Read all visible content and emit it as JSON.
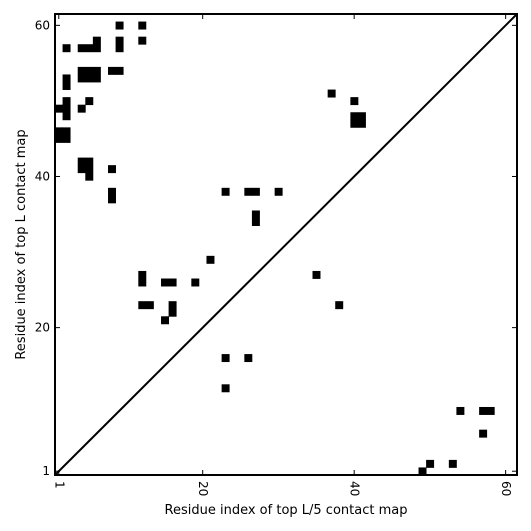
{
  "chart_data": {
    "type": "heatmap",
    "title": "",
    "xlabel": "Residue index of top L/5 contact map",
    "ylabel": "Residue index of top L contact map",
    "xlim": [
      0.5,
      61.5
    ],
    "ylim": [
      0.5,
      61.5
    ],
    "x_ticks": [
      1,
      20,
      40,
      60
    ],
    "y_ticks": [
      1,
      20,
      40,
      60
    ],
    "x_tick_rotation": "vertical",
    "grid": false,
    "legend": "none",
    "diagonal": true,
    "colors": {
      "contact": "#000000",
      "background": "#ffffff",
      "axis": "#000000"
    },
    "upper_triangle_contacts": [
      [
        9,
        60
      ],
      [
        12,
        60
      ],
      [
        2,
        57
      ],
      [
        4,
        57
      ],
      [
        5,
        57
      ],
      [
        6,
        57
      ],
      [
        6,
        58
      ],
      [
        9,
        57
      ],
      [
        9,
        58
      ],
      [
        12,
        58
      ],
      [
        4,
        53
      ],
      [
        4,
        54
      ],
      [
        5,
        53
      ],
      [
        5,
        54
      ],
      [
        6,
        53
      ],
      [
        6,
        54
      ],
      [
        2,
        52
      ],
      [
        2,
        53
      ],
      [
        8,
        54
      ],
      [
        9,
        54
      ],
      [
        37,
        51
      ],
      [
        40,
        50
      ],
      [
        5,
        50
      ],
      [
        2,
        49
      ],
      [
        2,
        50
      ],
      [
        1,
        49
      ],
      [
        4,
        49
      ],
      [
        2,
        48
      ],
      [
        40,
        47
      ],
      [
        40,
        48
      ],
      [
        41,
        47
      ],
      [
        41,
        48
      ],
      [
        1,
        45
      ],
      [
        1,
        46
      ],
      [
        2,
        45
      ],
      [
        2,
        46
      ],
      [
        4,
        41
      ],
      [
        4,
        42
      ],
      [
        5,
        41
      ],
      [
        5,
        42
      ],
      [
        5,
        40
      ],
      [
        8,
        41
      ],
      [
        8,
        37
      ],
      [
        8,
        38
      ],
      [
        23,
        38
      ],
      [
        26,
        38
      ],
      [
        27,
        38
      ],
      [
        30,
        38
      ],
      [
        27,
        34
      ],
      [
        27,
        35
      ],
      [
        21,
        29
      ],
      [
        12,
        26
      ],
      [
        12,
        27
      ],
      [
        35,
        27
      ],
      [
        15,
        26
      ],
      [
        16,
        26
      ],
      [
        19,
        26
      ],
      [
        12,
        23
      ],
      [
        13,
        23
      ],
      [
        16,
        22
      ],
      [
        16,
        23
      ],
      [
        38,
        23
      ],
      [
        15,
        21
      ],
      [
        23,
        16
      ],
      [
        26,
        16
      ],
      [
        23,
        12
      ]
    ],
    "lower_triangle_contacts": [
      [
        54,
        9
      ],
      [
        57,
        9
      ],
      [
        58,
        9
      ],
      [
        57,
        6
      ],
      [
        49,
        1
      ],
      [
        50,
        2
      ],
      [
        53,
        2
      ]
    ]
  }
}
